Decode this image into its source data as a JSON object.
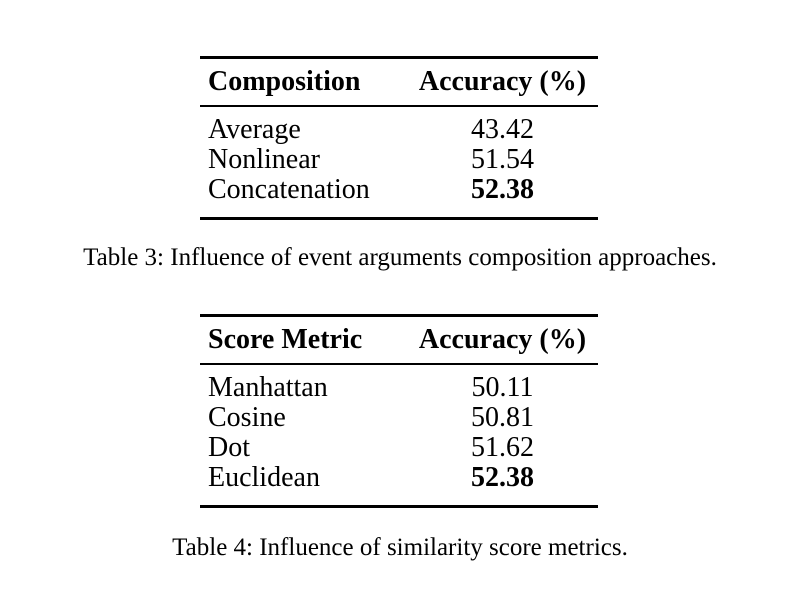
{
  "table3": {
    "headers": [
      "Composition",
      "Accuracy (%)"
    ],
    "rows": [
      {
        "label": "Average",
        "value": "43.42",
        "bold": false
      },
      {
        "label": "Nonlinear",
        "value": "51.54",
        "bold": false
      },
      {
        "label": "Concatenation",
        "value": "52.38",
        "bold": true
      }
    ],
    "caption": "Table 3: Influence of event arguments composition approaches."
  },
  "table4": {
    "headers": [
      "Score Metric",
      "Accuracy (%)"
    ],
    "rows": [
      {
        "label": "Manhattan",
        "value": "50.11",
        "bold": false
      },
      {
        "label": "Cosine",
        "value": "50.81",
        "bold": false
      },
      {
        "label": "Dot",
        "value": "51.62",
        "bold": false
      },
      {
        "label": "Euclidean",
        "value": "52.38",
        "bold": true
      }
    ],
    "caption": "Table 4: Influence of similarity score metrics."
  }
}
